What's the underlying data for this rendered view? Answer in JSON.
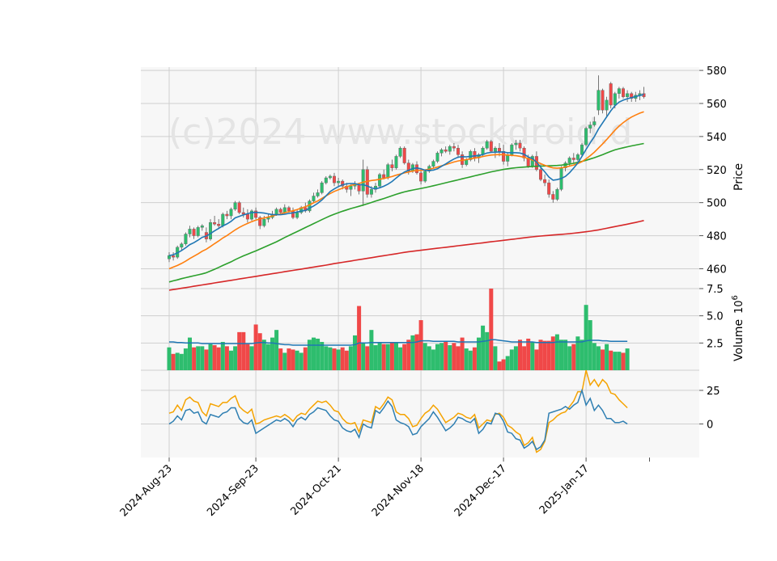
{
  "watermark": "(c)2024 www.stockdroid.d",
  "chart_data": {
    "type": "candlestick",
    "colors": {
      "up": "#2ebd6e",
      "down": "#f04848",
      "ma_fast": "#1f77b4",
      "ma_mid": "#ff7f0e",
      "ma_slow": "#2ca02c",
      "ma_long": "#d62728",
      "vol_avg": "#1f77b4",
      "osc_fast": "#2f7fb2",
      "osc_slow": "#f5a300"
    },
    "x_ticks": [
      "2024-Aug-23",
      "2024-Sep-23",
      "2024-Oct-21",
      "2024-Nov-18",
      "2024-Dec-17",
      "2025-Jan-17"
    ],
    "x_tick_bars": [
      0,
      21,
      41,
      61,
      81,
      101
    ],
    "price_panel": {
      "ylabel": "Price",
      "ylim": [
        448,
        582
      ],
      "yticks": [
        460,
        480,
        500,
        520,
        540,
        560,
        580
      ]
    },
    "volume_panel": {
      "ylabel": "Volume",
      "unit_base": "10",
      "unit_exp": "6",
      "ylim": [
        0,
        7.5
      ],
      "yticks": [
        2.5,
        5.0,
        7.5
      ]
    },
    "oscillator_panel": {
      "ylim": [
        -25,
        40
      ],
      "yticks": [
        0,
        25
      ]
    },
    "ohlc": [
      [
        466,
        470,
        464,
        468
      ],
      [
        468,
        470,
        465,
        467
      ],
      [
        467,
        474,
        466,
        473
      ],
      [
        473,
        476,
        471,
        475
      ],
      [
        475,
        482,
        474,
        481
      ],
      [
        481,
        486,
        479,
        484
      ],
      [
        484,
        485,
        478,
        480
      ],
      [
        480,
        486,
        479,
        485
      ],
      [
        485,
        487,
        483,
        486
      ],
      [
        482,
        485,
        476,
        478
      ],
      [
        478,
        490,
        477,
        488
      ],
      [
        488,
        492,
        486,
        487
      ],
      [
        487,
        490,
        484,
        486
      ],
      [
        486,
        494,
        485,
        493
      ],
      [
        493,
        495,
        490,
        492
      ],
      [
        492,
        497,
        490,
        496
      ],
      [
        496,
        501,
        495,
        500
      ],
      [
        500,
        501,
        493,
        494
      ],
      [
        494,
        497,
        491,
        493
      ],
      [
        493,
        496,
        488,
        490
      ],
      [
        490,
        496,
        489,
        495
      ],
      [
        495,
        497,
        490,
        491
      ],
      [
        491,
        492,
        484,
        486
      ],
      [
        486,
        492,
        485,
        490
      ],
      [
        490,
        493,
        488,
        491
      ],
      [
        491,
        495,
        490,
        493
      ],
      [
        493,
        497,
        492,
        496
      ],
      [
        496,
        497,
        493,
        494
      ],
      [
        494,
        499,
        493,
        497
      ],
      [
        497,
        498,
        494,
        495
      ],
      [
        495,
        497,
        490,
        491
      ],
      [
        491,
        496,
        490,
        494
      ],
      [
        494,
        498,
        493,
        497
      ],
      [
        497,
        500,
        494,
        495
      ],
      [
        495,
        502,
        494,
        501
      ],
      [
        501,
        506,
        500,
        504
      ],
      [
        504,
        508,
        503,
        506
      ],
      [
        506,
        513,
        505,
        512
      ],
      [
        512,
        516,
        511,
        515
      ],
      [
        515,
        517,
        514,
        516
      ],
      [
        516,
        518,
        510,
        512
      ],
      [
        512,
        515,
        510,
        513
      ],
      [
        513,
        514,
        508,
        510
      ],
      [
        510,
        512,
        506,
        508
      ],
      [
        508,
        511,
        504,
        510
      ],
      [
        510,
        513,
        508,
        511
      ],
      [
        511,
        512,
        505,
        507
      ],
      [
        507,
        526,
        498,
        520
      ],
      [
        520,
        522,
        503,
        505
      ],
      [
        505,
        510,
        503,
        508
      ],
      [
        508,
        512,
        506,
        510
      ],
      [
        510,
        518,
        509,
        517
      ],
      [
        517,
        520,
        514,
        515
      ],
      [
        515,
        524,
        514,
        523
      ],
      [
        523,
        526,
        519,
        521
      ],
      [
        521,
        529,
        520,
        528
      ],
      [
        528,
        534,
        527,
        533
      ],
      [
        533,
        534,
        523,
        524
      ],
      [
        524,
        526,
        517,
        519
      ],
      [
        519,
        524,
        518,
        523
      ],
      [
        523,
        525,
        517,
        518
      ],
      [
        518,
        520,
        511,
        513
      ],
      [
        513,
        520,
        512,
        519
      ],
      [
        519,
        523,
        518,
        522
      ],
      [
        522,
        526,
        521,
        525
      ],
      [
        525,
        531,
        524,
        530
      ],
      [
        530,
        533,
        528,
        532
      ],
      [
        532,
        534,
        530,
        531
      ],
      [
        531,
        535,
        529,
        534
      ],
      [
        534,
        536,
        531,
        533
      ],
      [
        533,
        535,
        527,
        529
      ],
      [
        529,
        531,
        521,
        523
      ],
      [
        523,
        527,
        522,
        526
      ],
      [
        526,
        532,
        525,
        531
      ],
      [
        531,
        533,
        525,
        527
      ],
      [
        527,
        530,
        524,
        529
      ],
      [
        529,
        534,
        528,
        533
      ],
      [
        533,
        538,
        532,
        537
      ],
      [
        537,
        538,
        530,
        531
      ],
      [
        531,
        534,
        527,
        533
      ],
      [
        533,
        536,
        528,
        531
      ],
      [
        531,
        535,
        523,
        525
      ],
      [
        525,
        530,
        522,
        529
      ],
      [
        529,
        536,
        528,
        535
      ],
      [
        535,
        538,
        532,
        536
      ],
      [
        536,
        538,
        531,
        533
      ],
      [
        533,
        534,
        525,
        527
      ],
      [
        527,
        529,
        521,
        522
      ],
      [
        522,
        529,
        521,
        528
      ],
      [
        528,
        531,
        519,
        520
      ],
      [
        520,
        524,
        513,
        514
      ],
      [
        514,
        517,
        510,
        512
      ],
      [
        512,
        514,
        503,
        505
      ],
      [
        505,
        507,
        500,
        502
      ],
      [
        502,
        509,
        501,
        508
      ],
      [
        508,
        522,
        507,
        521
      ],
      [
        521,
        525,
        519,
        524
      ],
      [
        524,
        528,
        522,
        527
      ],
      [
        527,
        530,
        524,
        526
      ],
      [
        526,
        530,
        525,
        529
      ],
      [
        529,
        536,
        528,
        535
      ],
      [
        535,
        546,
        534,
        545
      ],
      [
        545,
        549,
        542,
        547
      ],
      [
        547,
        552,
        546,
        549
      ],
      [
        556,
        577,
        553,
        568
      ],
      [
        568,
        569,
        554,
        556
      ],
      [
        556,
        564,
        552,
        562
      ],
      [
        572,
        573,
        557,
        559
      ],
      [
        559,
        567,
        557,
        566
      ],
      [
        566,
        570,
        563,
        569
      ],
      [
        569,
        570,
        563,
        564
      ],
      [
        564,
        568,
        561,
        566
      ],
      [
        566,
        567,
        561,
        563
      ],
      [
        563,
        567,
        561,
        565
      ],
      [
        565,
        568,
        562,
        566
      ],
      [
        566,
        570,
        563,
        564
      ]
    ],
    "volume": [
      2.1,
      1.5,
      1.6,
      1.5,
      2.0,
      3.0,
      2.1,
      2.2,
      2.2,
      1.9,
      2.4,
      2.3,
      2.1,
      2.6,
      2.2,
      1.8,
      2.2,
      3.5,
      3.5,
      2.4,
      2.2,
      4.2,
      3.4,
      2.8,
      2.4,
      3.0,
      3.7,
      2.0,
      1.6,
      2.0,
      1.9,
      1.8,
      1.6,
      2.1,
      2.8,
      3.0,
      2.9,
      2.6,
      2.2,
      2.1,
      2.0,
      1.9,
      2.1,
      1.8,
      2.2,
      3.2,
      5.9,
      2.5,
      2.2,
      3.7,
      2.3,
      2.6,
      2.4,
      2.4,
      2.5,
      2.5,
      2.1,
      2.4,
      2.8,
      3.2,
      3.3,
      4.6,
      2.5,
      2.2,
      1.9,
      2.4,
      2.5,
      2.6,
      2.3,
      2.5,
      2.2,
      3.0,
      2.0,
      1.8,
      2.1,
      3.0,
      4.1,
      3.5,
      7.9,
      2.2,
      0.8,
      1.0,
      1.3,
      1.9,
      2.2,
      2.8,
      2.2,
      2.9,
      2.6,
      1.9,
      2.8,
      2.7,
      2.7,
      3.1,
      3.3,
      2.8,
      2.8,
      2.2,
      2.4,
      3.1,
      2.8,
      6.0,
      4.6,
      2.5,
      2.2,
      1.9,
      2.4,
      1.8,
      1.7,
      1.7,
      1.6,
      2.0
    ],
    "ma_fast": [
      468.0,
      468.5,
      469.6,
      471.0,
      472.7,
      474.6,
      475.8,
      477.3,
      479.0,
      479.8,
      481.3,
      482.9,
      484.4,
      485.9,
      487.1,
      488.7,
      490.8,
      491.7,
      492.6,
      493.3,
      494.0,
      494.1,
      493.9,
      493.7,
      493.2,
      492.8,
      492.7,
      492.7,
      493.0,
      493.5,
      493.8,
      494.3,
      494.9,
      495.3,
      496.6,
      498.0,
      499.6,
      501.6,
      504.1,
      506.7,
      508.3,
      509.7,
      510.8,
      511.4,
      511.6,
      511.5,
      510.9,
      510.8,
      510.1,
      508.9,
      508.4,
      509.0,
      509.9,
      511.2,
      512.8,
      514.9,
      516.9,
      518.5,
      519.6,
      520.6,
      521.0,
      520.5,
      519.6,
      519.5,
      519.7,
      520.5,
      522.0,
      523.4,
      525.0,
      526.4,
      527.5,
      527.8,
      527.7,
      528.0,
      528.3,
      528.5,
      529.1,
      530.0,
      530.4,
      530.5,
      530.7,
      530.6,
      530.2,
      530.2,
      530.2,
      530.0,
      529.3,
      527.6,
      526.6,
      524.6,
      521.4,
      518.6,
      515.5,
      513.6,
      513.9,
      514.6,
      515.9,
      518.1,
      520.9,
      524.0,
      528.0,
      532.2,
      536.2,
      539.9,
      544.5,
      548.2,
      551.9,
      555.6,
      558.6,
      560.8,
      562.0,
      562.9,
      563.5,
      564.2,
      564.8,
      565.4
    ],
    "ma_mid": [
      460.0,
      461.0,
      462.0,
      463.2,
      464.6,
      466.2,
      467.6,
      469.0,
      470.6,
      471.8,
      473.5,
      475.2,
      476.8,
      478.6,
      480.1,
      481.8,
      483.5,
      485.0,
      486.3,
      487.4,
      488.5,
      489.4,
      490.1,
      490.7,
      491.3,
      491.9,
      492.6,
      493.2,
      493.9,
      494.5,
      495.1,
      495.8,
      496.7,
      497.5,
      498.6,
      499.9,
      501.0,
      502.6,
      504.1,
      505.5,
      506.8,
      507.8,
      508.8,
      509.6,
      510.4,
      511.0,
      511.6,
      512.4,
      512.9,
      513.4,
      513.7,
      514.1,
      514.6,
      515.2,
      515.8,
      516.6,
      517.3,
      518.0,
      518.5,
      519.1,
      519.4,
      519.5,
      519.8,
      520.2,
      520.8,
      521.5,
      522.3,
      523.0,
      523.8,
      524.6,
      525.2,
      525.6,
      526.0,
      526.5,
      526.9,
      527.3,
      527.9,
      528.4,
      528.8,
      529.0,
      529.1,
      529.0,
      528.8,
      528.6,
      528.4,
      528.0,
      527.4,
      526.6,
      525.8,
      524.8,
      523.6,
      522.6,
      521.7,
      521.0,
      520.8,
      521.0,
      521.5,
      522.1,
      522.8,
      523.6,
      524.8,
      526.5,
      528.4,
      530.5,
      533.0,
      535.5,
      538.2,
      541.0,
      543.8,
      546.3,
      548.4,
      550.2,
      551.8,
      553.0,
      554.1,
      555.0
    ],
    "ma_slow": [
      452.0,
      452.7,
      453.3,
      454.0,
      454.6,
      455.2,
      455.8,
      456.3,
      456.9,
      457.6,
      458.6,
      459.7,
      460.8,
      462.0,
      463.1,
      464.2,
      465.5,
      466.7,
      467.8,
      468.8,
      469.8,
      470.8,
      471.9,
      473.0,
      474.1,
      475.2,
      476.3,
      477.6,
      478.9,
      480.1,
      481.3,
      482.5,
      483.7,
      484.9,
      486.1,
      487.3,
      488.5,
      489.7,
      490.9,
      492.0,
      493.0,
      493.9,
      494.8,
      495.6,
      496.4,
      497.1,
      497.8,
      498.5,
      499.3,
      500.1,
      500.9,
      501.7,
      502.5,
      503.3,
      504.2,
      505.0,
      505.8,
      506.5,
      507.1,
      507.6,
      508.1,
      508.6,
      509.1,
      509.6,
      510.2,
      510.8,
      511.4,
      512.0,
      512.6,
      513.2,
      513.8,
      514.4,
      515.0,
      515.6,
      516.2,
      516.8,
      517.4,
      518.0,
      518.6,
      519.1,
      519.6,
      520.1,
      520.5,
      520.8,
      521.1,
      521.3,
      521.5,
      521.7,
      521.9,
      522.0,
      522.1,
      522.2,
      522.3,
      522.4,
      522.5,
      522.7,
      523.0,
      523.3,
      523.8,
      524.4,
      525.0,
      525.6,
      526.4,
      527.2,
      528.1,
      529.0,
      530.0,
      531.0,
      531.9,
      532.6,
      533.2,
      533.8,
      534.3,
      534.8,
      535.3,
      535.8
    ],
    "ma_long": [
      447.0,
      447.4,
      447.8,
      448.2,
      448.6,
      449.0,
      449.4,
      449.8,
      450.2,
      450.6,
      451.0,
      451.4,
      451.8,
      452.2,
      452.6,
      453.0,
      453.4,
      453.8,
      454.2,
      454.6,
      455.0,
      455.4,
      455.8,
      456.2,
      456.6,
      457.0,
      457.4,
      457.8,
      458.2,
      458.6,
      459.0,
      459.4,
      459.8,
      460.2,
      460.6,
      461.0,
      461.4,
      461.8,
      462.2,
      462.6,
      463.1,
      463.5,
      463.9,
      464.3,
      464.7,
      465.1,
      465.5,
      465.9,
      466.3,
      466.7,
      467.1,
      467.5,
      467.9,
      468.3,
      468.7,
      469.1,
      469.5,
      469.9,
      470.3,
      470.6,
      470.9,
      471.2,
      471.5,
      471.8,
      472.1,
      472.4,
      472.7,
      473.0,
      473.3,
      473.6,
      473.9,
      474.2,
      474.5,
      474.8,
      475.1,
      475.4,
      475.7,
      476.0,
      476.3,
      476.6,
      476.9,
      477.2,
      477.5,
      477.8,
      478.1,
      478.4,
      478.7,
      479.0,
      479.3,
      479.6,
      479.8,
      480.0,
      480.2,
      480.4,
      480.6,
      480.8,
      481.0,
      481.2,
      481.5,
      481.8,
      482.1,
      482.4,
      482.7,
      483.1,
      483.5,
      484.0,
      484.5,
      485.0,
      485.5,
      486.0,
      486.5,
      487.0,
      487.5,
      488.0,
      488.6,
      489.2
    ],
    "vol_avg": [
      2.6,
      2.6,
      2.55,
      2.55,
      2.5,
      2.5,
      2.5,
      2.5,
      2.45,
      2.45,
      2.45,
      2.45,
      2.45,
      2.45,
      2.45,
      2.45,
      2.45,
      2.45,
      2.45,
      2.45,
      2.45,
      2.5,
      2.55,
      2.55,
      2.5,
      2.5,
      2.45,
      2.4,
      2.35,
      2.35,
      2.3,
      2.3,
      2.3,
      2.3,
      2.3,
      2.3,
      2.3,
      2.3,
      2.3,
      2.3,
      2.3,
      2.3,
      2.3,
      2.3,
      2.3,
      2.35,
      2.5,
      2.5,
      2.5,
      2.55,
      2.55,
      2.55,
      2.55,
      2.55,
      2.55,
      2.55,
      2.55,
      2.55,
      2.55,
      2.55,
      2.6,
      2.7,
      2.7,
      2.7,
      2.65,
      2.65,
      2.65,
      2.65,
      2.65,
      2.65,
      2.6,
      2.6,
      2.6,
      2.6,
      2.6,
      2.6,
      2.65,
      2.7,
      2.8,
      2.8,
      2.75,
      2.7,
      2.65,
      2.6,
      2.6,
      2.6,
      2.6,
      2.6,
      2.6,
      2.55,
      2.55,
      2.55,
      2.55,
      2.55,
      2.6,
      2.6,
      2.6,
      2.6,
      2.6,
      2.6,
      2.6,
      2.7,
      2.75,
      2.75,
      2.75,
      2.7,
      2.7,
      2.65,
      2.65,
      2.65,
      2.65,
      2.65
    ],
    "osc_fast": [
      0,
      2,
      6,
      3,
      10,
      11,
      8,
      9,
      2,
      0,
      7,
      6,
      5,
      8,
      9,
      12,
      12,
      4,
      1,
      0,
      3,
      -7,
      -5,
      -3,
      -1,
      1,
      3,
      2,
      4,
      2,
      -2,
      3,
      5,
      3,
      7,
      9,
      12,
      11,
      10,
      6,
      3,
      2,
      -3,
      -5,
      -6,
      -4,
      -10,
      0,
      -2,
      -3,
      10,
      8,
      12,
      17,
      13,
      3,
      1,
      0,
      -2,
      -8,
      -7,
      -2,
      1,
      4,
      9,
      5,
      0,
      -5,
      -3,
      0,
      5,
      4,
      2,
      1,
      4,
      -7,
      -4,
      1,
      0,
      8,
      7,
      2,
      -6,
      -7,
      -11,
      -12,
      -18,
      -16,
      -13,
      -19,
      -17,
      -12,
      8,
      9,
      10,
      11,
      13,
      11,
      14,
      16,
      25,
      14,
      19,
      10,
      14,
      10,
      4,
      4,
      1,
      1,
      2,
      0
    ],
    "osc_slow": [
      8,
      9,
      14,
      10,
      18,
      20,
      17,
      16,
      9,
      6,
      15,
      14,
      13,
      16,
      16,
      19,
      21,
      13,
      10,
      8,
      11,
      0,
      1,
      3,
      4,
      5,
      6,
      5,
      7,
      5,
      2,
      6,
      8,
      7,
      11,
      14,
      17,
      16,
      17,
      14,
      10,
      9,
      4,
      1,
      0,
      1,
      -6,
      3,
      2,
      1,
      13,
      11,
      15,
      20,
      18,
      9,
      7,
      7,
      4,
      -2,
      -1,
      4,
      8,
      10,
      14,
      11,
      6,
      1,
      3,
      5,
      8,
      7,
      5,
      4,
      7,
      -3,
      0,
      3,
      2,
      7,
      8,
      5,
      -1,
      -3,
      -6,
      -8,
      -16,
      -14,
      -10,
      -21,
      -19,
      -13,
      1,
      3,
      6,
      8,
      9,
      13,
      17,
      24,
      24,
      40,
      29,
      33,
      28,
      33,
      30,
      23,
      22,
      18,
      15,
      12
    ]
  }
}
